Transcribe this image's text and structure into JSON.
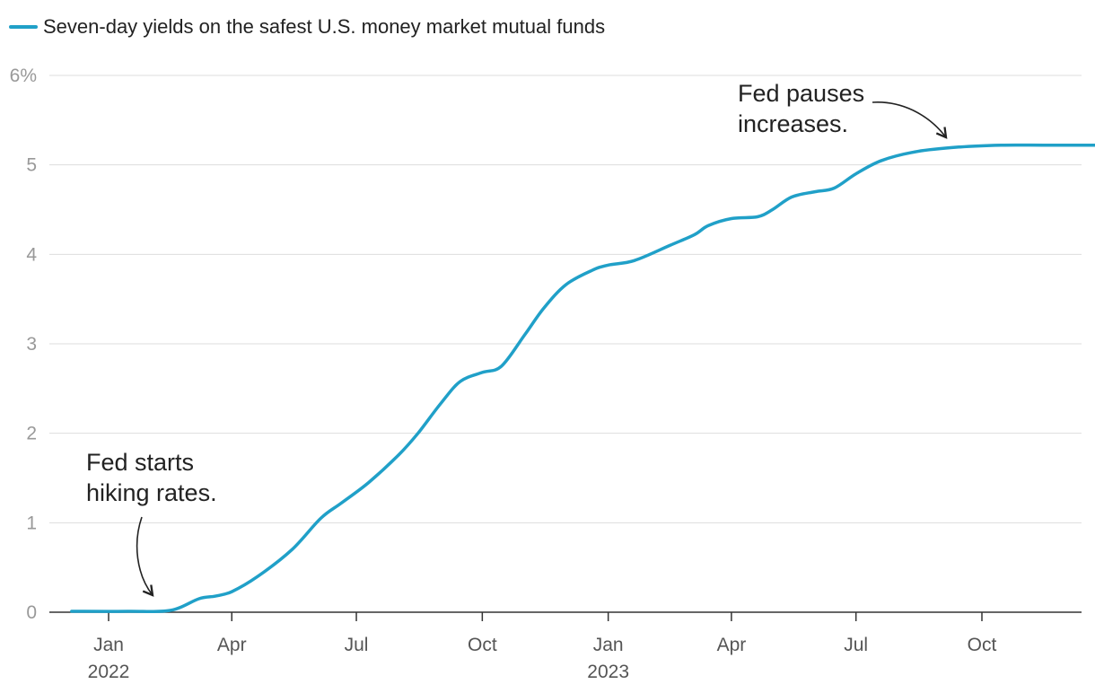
{
  "colors": {
    "series": "#20a0c8",
    "grid": "#dddddd",
    "axis": "#333333",
    "tick_text": "#999999"
  },
  "chart_data": {
    "type": "line",
    "title": "",
    "xlabel": "",
    "ylabel": "",
    "ylim": [
      0,
      6
    ],
    "y_ticks": [
      {
        "value": 0,
        "label": "0"
      },
      {
        "value": 1,
        "label": "1"
      },
      {
        "value": 2,
        "label": "2"
      },
      {
        "value": 3,
        "label": "3"
      },
      {
        "value": 4,
        "label": "4"
      },
      {
        "value": 5,
        "label": "5"
      },
      {
        "value": 6,
        "label": "6%"
      }
    ],
    "x_ticks": [
      {
        "value": "2022-01-01",
        "label": "Jan",
        "year": "2022"
      },
      {
        "value": "2022-04-01",
        "label": "Apr",
        "year": ""
      },
      {
        "value": "2022-07-01",
        "label": "Jul",
        "year": ""
      },
      {
        "value": "2022-10-01",
        "label": "Oct",
        "year": ""
      },
      {
        "value": "2023-01-01",
        "label": "Jan",
        "year": "2023"
      },
      {
        "value": "2023-04-01",
        "label": "Apr",
        "year": ""
      },
      {
        "value": "2023-07-01",
        "label": "Jul",
        "year": ""
      },
      {
        "value": "2023-10-01",
        "label": "Oct",
        "year": ""
      }
    ],
    "xlim": [
      "2021-12-15",
      "2024-01-15"
    ],
    "grid": true,
    "legend_position": "top-left",
    "series": [
      {
        "name": "Seven-day yields on the safest U.S. money market mutual funds",
        "x": [
          "2021-12-05",
          "2022-01-15",
          "2022-02-15",
          "2022-03-08",
          "2022-03-20",
          "2022-04-01",
          "2022-04-20",
          "2022-05-15",
          "2022-06-05",
          "2022-06-20",
          "2022-07-10",
          "2022-08-01",
          "2022-08-15",
          "2022-09-01",
          "2022-09-15",
          "2022-10-01",
          "2022-10-15",
          "2022-11-01",
          "2022-11-15",
          "2022-12-01",
          "2022-12-20",
          "2023-01-01",
          "2023-01-20",
          "2023-02-15",
          "2023-03-05",
          "2023-03-15",
          "2023-04-01",
          "2023-04-20",
          "2023-05-01",
          "2023-05-15",
          "2023-06-01",
          "2023-06-15",
          "2023-07-01",
          "2023-07-20",
          "2023-08-15",
          "2023-09-15",
          "2023-10-15",
          "2023-11-15",
          "2023-12-15",
          "2024-01-20"
        ],
        "y": [
          0.01,
          0.01,
          0.02,
          0.15,
          0.18,
          0.23,
          0.4,
          0.7,
          1.05,
          1.22,
          1.45,
          1.76,
          2.0,
          2.34,
          2.58,
          2.68,
          2.75,
          3.1,
          3.4,
          3.66,
          3.82,
          3.88,
          3.93,
          4.1,
          4.22,
          4.32,
          4.4,
          4.42,
          4.5,
          4.64,
          4.7,
          4.74,
          4.9,
          5.05,
          5.15,
          5.2,
          5.22,
          5.22,
          5.22,
          5.22
        ]
      }
    ],
    "annotations": [
      {
        "lines": [
          "Fed starts",
          "hiking rates."
        ],
        "target_x": "2022-03-06",
        "target_y": 0.15
      },
      {
        "lines": [
          "Fed pauses",
          "increases."
        ],
        "target_x": "2023-09-15",
        "target_y": 5.26
      }
    ]
  }
}
